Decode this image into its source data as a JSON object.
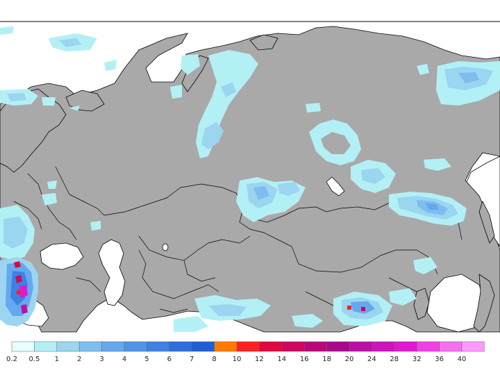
{
  "map": {
    "land_color": "#a9a9a9",
    "water_color": "#ffffff",
    "border_color": "#000000"
  },
  "legend": {
    "colors": [
      "#e6ffff",
      "#b3f0f5",
      "#9bd5f0",
      "#7ebdf0",
      "#64a8ee",
      "#4e95ea",
      "#3c82e4",
      "#2c6fdc",
      "#1f5fd2",
      "#ff7a00",
      "#ff2020",
      "#e0083c",
      "#cc0860",
      "#b80878",
      "#a8088c",
      "#bb10a8",
      "#cc14bd",
      "#dd1ad0",
      "#ee40e6",
      "#f570ef",
      "#ff99ff"
    ],
    "labels": [
      "0.2",
      "0.5",
      "1",
      "2",
      "3",
      "4",
      "5",
      "6",
      "7",
      "8",
      "10",
      "12",
      "14",
      "16",
      "18",
      "20",
      "24",
      "28",
      "32",
      "36",
      "40"
    ]
  }
}
